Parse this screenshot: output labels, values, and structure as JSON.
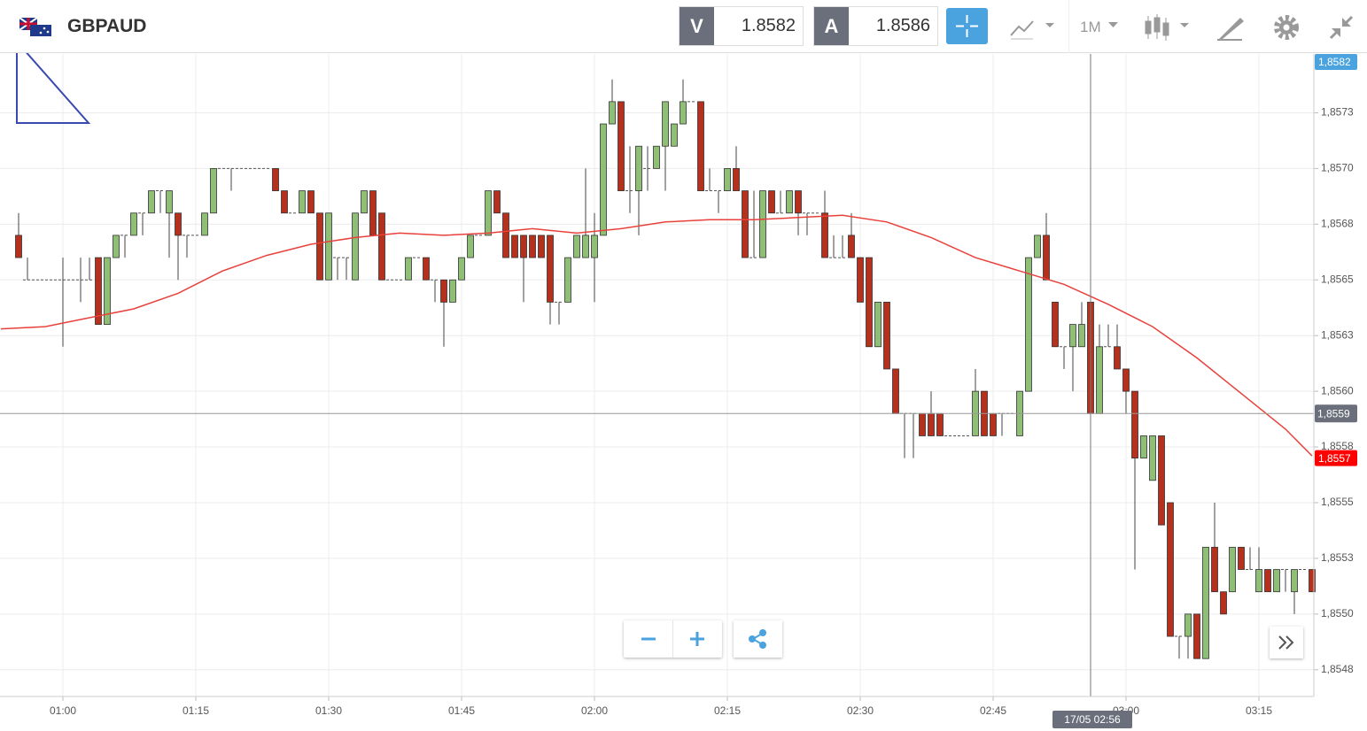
{
  "header": {
    "symbol": "GBPAUD",
    "bid_label": "V",
    "bid": "1.8582",
    "ask_label": "A",
    "ask": "1.8586",
    "timeframe": "1M"
  },
  "chart_data": {
    "type": "candlestick",
    "x": [
      55,
      56,
      57,
      58,
      59,
      60,
      61,
      62,
      63,
      64,
      65,
      66,
      67,
      68,
      69,
      70,
      71,
      72,
      73,
      74,
      75,
      76,
      77,
      78,
      79,
      80,
      81,
      82,
      83,
      84,
      85,
      86,
      87,
      88,
      89,
      90,
      91,
      92,
      93,
      94,
      95,
      96,
      97,
      98,
      99,
      100,
      101,
      102,
      103,
      104,
      105,
      106,
      107,
      108,
      109,
      110,
      111,
      112,
      113,
      114,
      115,
      116,
      117,
      118,
      119,
      120,
      121,
      122,
      123,
      124,
      125,
      126,
      127,
      128,
      129,
      130,
      131,
      132,
      133,
      134,
      135,
      136,
      137,
      138,
      139,
      140,
      141,
      142,
      143,
      144,
      145,
      146,
      147,
      148,
      149,
      150,
      151,
      152,
      153,
      154,
      155,
      156,
      157,
      158,
      159,
      160,
      161,
      162,
      163,
      164,
      165,
      166,
      167,
      168,
      169,
      170,
      171,
      172,
      173,
      174,
      175,
      176,
      177,
      178,
      179,
      180,
      181,
      182,
      183,
      184,
      185,
      186,
      187,
      188,
      189,
      190,
      191,
      192,
      193,
      194,
      195,
      196,
      197,
      198,
      199,
      200,
      201
    ],
    "open": [
      1.8567,
      1.8565,
      1.8565,
      1.8565,
      1.8565,
      1.8565,
      1.8565,
      1.8565,
      1.8565,
      1.8566,
      1.8563,
      1.8566,
      1.8567,
      1.8567,
      1.8568,
      1.8568,
      1.8569,
      1.8568,
      1.8568,
      1.8567,
      1.8567,
      1.8567,
      1.8568,
      1.857,
      1.857,
      1.857,
      1.857,
      1.857,
      1.857,
      1.857,
      1.8569,
      1.8568,
      1.8568,
      1.8569,
      1.8568,
      1.8565,
      1.8566,
      1.8566,
      1.8565,
      1.8568,
      1.8569,
      1.8568,
      1.8565,
      1.8565,
      1.8565,
      1.8566,
      1.8566,
      1.8565,
      1.8565,
      1.8564,
      1.8565,
      1.8566,
      1.8567,
      1.8567,
      1.8569,
      1.8568,
      1.8567,
      1.8567,
      1.8567,
      1.8567,
      1.8567,
      1.8564,
      1.8564,
      1.8566,
      1.8566,
      1.8566,
      1.8567,
      1.8572,
      1.8573,
      1.8569,
      1.8569,
      1.857,
      1.857,
      1.8571,
      1.8571,
      1.8572,
      1.8573,
      1.8573,
      1.8569,
      1.8569,
      1.8569,
      1.857,
      1.8569,
      1.8566,
      1.8566,
      1.8569,
      1.8568,
      1.8568,
      1.8569,
      1.8568,
      1.8568,
      1.8568,
      1.8566,
      1.8566,
      1.8567,
      1.8566,
      1.8566,
      1.8562,
      1.8564,
      1.8561,
      1.8559,
      1.8559,
      1.8559,
      1.8559,
      1.8559,
      1.8558,
      1.8558,
      1.8558,
      1.8558,
      1.856,
      1.8559,
      1.8559,
      1.8559,
      1.8558,
      1.856,
      1.8566,
      1.8567,
      1.8564,
      1.8562,
      1.8562,
      1.8562,
      1.8564,
      1.8559,
      1.8562,
      1.8562,
      1.8561,
      1.856,
      1.8557,
      1.8556,
      1.8558,
      1.8555,
      1.8549,
      1.8549,
      1.855,
      1.8548,
      1.8553,
      1.8551,
      1.8551,
      1.8553,
      1.8552,
      1.8551,
      1.8552,
      1.8551,
      1.8552,
      1.8551,
      1.8552,
      1.8552
    ],
    "high": [
      1.8568,
      1.8566,
      1.8565,
      1.8565,
      1.8565,
      1.8566,
      1.8565,
      1.8566,
      1.8566,
      1.8566,
      1.8566,
      1.8567,
      1.8567,
      1.8568,
      1.8568,
      1.8569,
      1.8569,
      1.8569,
      1.8568,
      1.8567,
      1.8567,
      1.8568,
      1.857,
      1.857,
      1.857,
      1.857,
      1.857,
      1.857,
      1.857,
      1.857,
      1.8569,
      1.8568,
      1.8569,
      1.8569,
      1.8568,
      1.8568,
      1.8566,
      1.8566,
      1.8568,
      1.8569,
      1.8569,
      1.8568,
      1.8565,
      1.8565,
      1.8566,
      1.8566,
      1.8566,
      1.8565,
      1.8565,
      1.8565,
      1.8566,
      1.8567,
      1.8567,
      1.8569,
      1.8569,
      1.8568,
      1.8567,
      1.8567,
      1.8567,
      1.8567,
      1.8567,
      1.8564,
      1.8566,
      1.8567,
      1.857,
      1.8568,
      1.8572,
      1.8574,
      1.8573,
      1.8571,
      1.8571,
      1.8571,
      1.8571,
      1.8573,
      1.8572,
      1.8574,
      1.8573,
      1.8573,
      1.857,
      1.8569,
      1.857,
      1.8571,
      1.8569,
      1.8569,
      1.8569,
      1.8569,
      1.8569,
      1.8569,
      1.8569,
      1.8568,
      1.8568,
      1.8569,
      1.8567,
      1.8567,
      1.8568,
      1.8566,
      1.8566,
      1.8564,
      1.8564,
      1.8561,
      1.8559,
      1.8559,
      1.8559,
      1.856,
      1.8559,
      1.8558,
      1.8558,
      1.8558,
      1.8561,
      1.856,
      1.8559,
      1.8559,
      1.8559,
      1.856,
      1.8566,
      1.8567,
      1.8568,
      1.8564,
      1.8562,
      1.8563,
      1.8564,
      1.8564,
      1.8563,
      1.8563,
      1.8563,
      1.8561,
      1.856,
      1.8558,
      1.8558,
      1.8558,
      1.8555,
      1.8549,
      1.855,
      1.855,
      1.8553,
      1.8555,
      1.8551,
      1.8553,
      1.8553,
      1.8553,
      1.8553,
      1.8552,
      1.8552,
      1.8552,
      1.8552,
      1.8552,
      1.8552
    ],
    "low": [
      1.8566,
      1.8565,
      1.8565,
      1.8565,
      1.8565,
      1.8562,
      1.8565,
      1.8564,
      1.8565,
      1.8563,
      1.8563,
      1.8566,
      1.8566,
      1.8567,
      1.8567,
      1.8568,
      1.8568,
      1.8566,
      1.8565,
      1.8566,
      1.8567,
      1.8567,
      1.8568,
      1.857,
      1.8569,
      1.857,
      1.857,
      1.857,
      1.857,
      1.8569,
      1.8568,
      1.8568,
      1.8568,
      1.8568,
      1.8565,
      1.8565,
      1.8565,
      1.8565,
      1.8565,
      1.8568,
      1.8567,
      1.8565,
      1.8565,
      1.8565,
      1.8565,
      1.8566,
      1.8565,
      1.8564,
      1.8562,
      1.8564,
      1.8565,
      1.8566,
      1.8567,
      1.8567,
      1.8568,
      1.8566,
      1.8566,
      1.8564,
      1.8566,
      1.8566,
      1.8563,
      1.8563,
      1.8564,
      1.8566,
      1.8566,
      1.8564,
      1.8567,
      1.8572,
      1.8569,
      1.8568,
      1.8567,
      1.8569,
      1.857,
      1.8569,
      1.8571,
      1.8572,
      1.8573,
      1.8569,
      1.8569,
      1.8568,
      1.8569,
      1.8569,
      1.8566,
      1.8566,
      1.8566,
      1.8568,
      1.8568,
      1.8568,
      1.8567,
      1.8567,
      1.8568,
      1.8566,
      1.8566,
      1.8566,
      1.8566,
      1.8564,
      1.8562,
      1.8562,
      1.8561,
      1.8559,
      1.8557,
      1.8557,
      1.8558,
      1.8558,
      1.8558,
      1.8558,
      1.8558,
      1.8558,
      1.8558,
      1.8558,
      1.8558,
      1.8558,
      1.8559,
      1.8558,
      1.856,
      1.8566,
      1.8565,
      1.8562,
      1.8561,
      1.856,
      1.8562,
      1.8556,
      1.8559,
      1.8562,
      1.8561,
      1.8559,
      1.8552,
      1.8557,
      1.8556,
      1.8554,
      1.8549,
      1.8548,
      1.8548,
      1.8548,
      1.8548,
      1.8551,
      1.855,
      1.8551,
      1.8552,
      1.8552,
      1.8551,
      1.8551,
      1.8551,
      1.8551,
      1.855,
      1.8552,
      1.8551
    ],
    "close": [
      1.8566,
      1.8565,
      1.8565,
      1.8565,
      1.8565,
      1.8565,
      1.8565,
      1.8565,
      1.8565,
      1.8563,
      1.8566,
      1.8567,
      1.8567,
      1.8568,
      1.8568,
      1.8569,
      1.8569,
      1.8569,
      1.8567,
      1.8567,
      1.8567,
      1.8568,
      1.857,
      1.857,
      1.857,
      1.857,
      1.857,
      1.857,
      1.857,
      1.8569,
      1.8568,
      1.8568,
      1.8569,
      1.8568,
      1.8565,
      1.8568,
      1.8566,
      1.8566,
      1.8568,
      1.8569,
      1.8567,
      1.8565,
      1.8565,
      1.8565,
      1.8566,
      1.8566,
      1.8565,
      1.8565,
      1.8564,
      1.8565,
      1.8566,
      1.8567,
      1.8567,
      1.8569,
      1.8568,
      1.8566,
      1.8566,
      1.8566,
      1.8566,
      1.8566,
      1.8564,
      1.8564,
      1.8566,
      1.8567,
      1.8567,
      1.8567,
      1.8572,
      1.8573,
      1.8569,
      1.8569,
      1.8571,
      1.857,
      1.8571,
      1.8573,
      1.8572,
      1.8573,
      1.8573,
      1.8569,
      1.8569,
      1.8569,
      1.857,
      1.8569,
      1.8566,
      1.8566,
      1.8569,
      1.8568,
      1.8568,
      1.8569,
      1.8568,
      1.8568,
      1.8568,
      1.8566,
      1.8566,
      1.8566,
      1.8566,
      1.8564,
      1.8562,
      1.8564,
      1.8561,
      1.8559,
      1.8559,
      1.8559,
      1.8558,
      1.8558,
      1.8558,
      1.8558,
      1.8558,
      1.8558,
      1.856,
      1.8558,
      1.8558,
      1.8559,
      1.8559,
      1.856,
      1.8566,
      1.8567,
      1.8565,
      1.8562,
      1.8562,
      1.8563,
      1.8563,
      1.8559,
      1.8562,
      1.8562,
      1.8561,
      1.856,
      1.8557,
      1.8558,
      1.8558,
      1.8554,
      1.8549,
      1.8549,
      1.855,
      1.8548,
      1.8553,
      1.8551,
      1.855,
      1.8553,
      1.8552,
      1.8552,
      1.8552,
      1.8551,
      1.8552,
      1.8552,
      1.8552,
      1.8552,
      1.8551
    ],
    "up_color": "#8fbe77",
    "down_color": "#b3311d",
    "xlim": [
      52.9,
      201.2
    ],
    "xticks": [
      {
        "value": 60,
        "label": "01:00"
      },
      {
        "value": 75,
        "label": "01:15"
      },
      {
        "value": 90,
        "label": "01:30"
      },
      {
        "value": 105,
        "label": "01:45"
      },
      {
        "value": 120,
        "label": "02:00"
      },
      {
        "value": 135,
        "label": "02:15"
      },
      {
        "value": 150,
        "label": "02:30"
      },
      {
        "value": 165,
        "label": "02:45"
      },
      {
        "value": 180,
        "label": "03:00"
      },
      {
        "value": 195,
        "label": "03:15"
      }
    ],
    "ylim": [
      1.85463,
      1.85751
    ],
    "yticks": [
      {
        "value": 1.85725,
        "label": "1,8573"
      },
      {
        "value": 1.857,
        "label": "1,8570"
      },
      {
        "value": 1.85675,
        "label": "1,8568"
      },
      {
        "value": 1.8565,
        "label": "1,8565"
      },
      {
        "value": 1.85625,
        "label": "1,8563"
      },
      {
        "value": 1.856,
        "label": "1,8560"
      },
      {
        "value": 1.85575,
        "label": "1,8558"
      },
      {
        "value": 1.8555,
        "label": "1,8555"
      },
      {
        "value": 1.85525,
        "label": "1,8553"
      },
      {
        "value": 1.855,
        "label": "1,8550"
      },
      {
        "value": 1.85475,
        "label": "1,8548"
      }
    ],
    "grid": true,
    "ma": {
      "color": "#e8413c",
      "x": [
        53,
        58,
        63,
        68,
        73,
        78,
        83,
        88,
        93,
        98,
        103,
        108,
        113,
        118,
        123,
        128,
        133,
        138,
        143,
        148,
        153,
        158,
        163,
        168,
        173,
        178,
        183,
        188,
        193,
        198,
        201
      ],
      "values": [
        1.85628,
        1.85629,
        1.85633,
        1.85637,
        1.85644,
        1.85654,
        1.85661,
        1.85666,
        1.85669,
        1.85671,
        1.8567,
        1.85671,
        1.85673,
        1.85671,
        1.85673,
        1.85676,
        1.85677,
        1.85677,
        1.85678,
        1.85679,
        1.85676,
        1.85669,
        1.8566,
        1.85654,
        1.85648,
        1.85639,
        1.85629,
        1.85615,
        1.85599,
        1.85583,
        1.85571
      ]
    },
    "crosshair": {
      "x": 176,
      "y": 1.8559,
      "x_label": "17/05 02:56",
      "y_label": "1,8559"
    },
    "price_tags": [
      {
        "value": 1.8582,
        "label": "1,8582",
        "color": "#4aa3df"
      },
      {
        "value": 1.8557,
        "label": "1,8557",
        "color": "#ff0000"
      }
    ]
  }
}
